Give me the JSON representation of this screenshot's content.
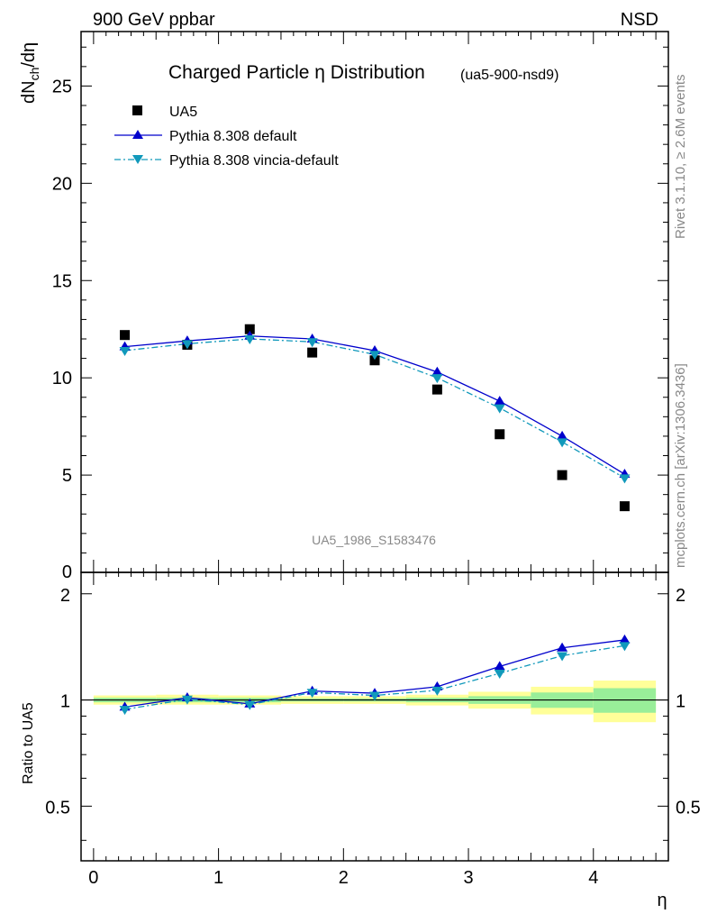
{
  "header": {
    "left": "900 GeV ppbar",
    "right": "NSD"
  },
  "side_labels": {
    "rivet": "Rivet 3.1.10, ≥ 2.6M events",
    "mcplots": "mcplots.cern.ch [arXiv:1306.3436]"
  },
  "colors": {
    "data": "#000000",
    "pythia_default": "#0000cc",
    "pythia_vincia": "#1199bb",
    "band_inner": "#99ee99",
    "band_outer": "#ffff99"
  },
  "chart_data": [
    {
      "type": "scatter",
      "title": "Charged Particle η Distribution",
      "title_tag": "(ua5-900-nsd9)",
      "ylabel": "dN_ch/dη",
      "ylim": [
        0,
        27.8
      ],
      "yticks": [
        5,
        10,
        15,
        20,
        25
      ],
      "ytick_labels": [
        "5",
        "10",
        "15",
        "20",
        "25"
      ],
      "ybottom_label": "0",
      "xlim": [
        -0.1,
        4.6
      ],
      "legend_position": "top-left",
      "watermark": "UA5_1986_S1583476",
      "x": [
        0.25,
        0.75,
        1.25,
        1.75,
        2.25,
        2.75,
        3.25,
        3.75,
        4.25
      ],
      "series": [
        {
          "name": "UA5",
          "style": "square",
          "values": [
            12.2,
            11.7,
            12.5,
            11.3,
            10.9,
            9.4,
            7.1,
            5.0,
            3.4
          ]
        },
        {
          "name": "Pythia 8.308 default",
          "style": "solid-triangle-up",
          "values": [
            11.6,
            11.9,
            12.15,
            12.0,
            11.4,
            10.3,
            8.8,
            7.0,
            5.05
          ]
        },
        {
          "name": "Pythia 8.308 vincia-default",
          "style": "dashdot-triangle-down",
          "values": [
            11.4,
            11.75,
            12.0,
            11.85,
            11.2,
            10.0,
            8.45,
            6.7,
            4.85
          ]
        }
      ]
    },
    {
      "type": "line",
      "ylabel": "Ratio to UA5",
      "xlabel": "η",
      "ylim": [
        0.35,
        2.3
      ],
      "yticks": [
        0.5,
        1,
        2
      ],
      "ytick_labels": [
        "0.5",
        "1",
        "2"
      ],
      "xticks": [
        0,
        1,
        2,
        3,
        4
      ],
      "xtick_labels": [
        "0",
        "1",
        "2",
        "3",
        "4"
      ],
      "bands": {
        "edges": [
          0,
          0.5,
          1,
          1.5,
          2,
          2.5,
          3,
          3.5,
          4,
          4.5
        ],
        "inner_lo": [
          0.985,
          0.985,
          0.985,
          0.99,
          0.99,
          0.985,
          0.975,
          0.95,
          0.92
        ],
        "inner_hi": [
          1.015,
          1.015,
          1.015,
          1.01,
          1.01,
          1.015,
          1.025,
          1.05,
          1.08
        ],
        "outer_lo": [
          0.97,
          0.97,
          0.97,
          0.975,
          0.975,
          0.965,
          0.945,
          0.91,
          0.865
        ],
        "outer_hi": [
          1.03,
          1.035,
          1.03,
          1.025,
          1.025,
          1.035,
          1.055,
          1.09,
          1.135
        ]
      },
      "series": [
        {
          "name": "Pythia 8.308 default",
          "values": [
            0.955,
            1.015,
            0.975,
            1.06,
            1.045,
            1.09,
            1.245,
            1.405,
            1.48
          ]
        },
        {
          "name": "Pythia 8.308 vincia-default",
          "values": [
            0.94,
            1.005,
            0.97,
            1.05,
            1.03,
            1.065,
            1.19,
            1.335,
            1.425
          ]
        }
      ]
    }
  ]
}
